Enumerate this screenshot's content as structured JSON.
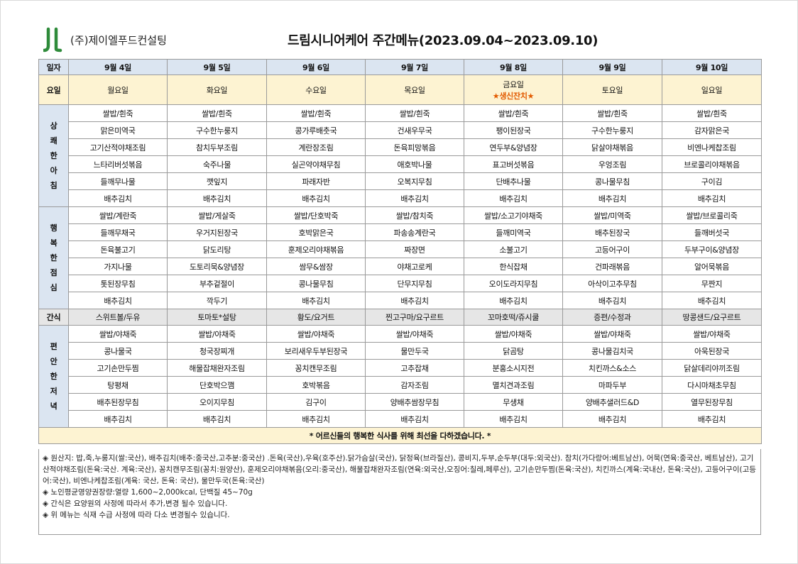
{
  "header": {
    "company": "(주)제이엘푸드컨설팅",
    "title": "드림시니어케어 주간메뉴(2023.09.04~2023.09.10)",
    "logo_icon": "jl-logo-icon",
    "logo_color": "#2e8b3a"
  },
  "table": {
    "row_label_date": "일자",
    "row_label_day": "요일",
    "row_label_snack": "간식",
    "dates": [
      "9월 4일",
      "9월 5일",
      "9월 6일",
      "9월 7일",
      "9월 8일",
      "9월 9일",
      "9월 10일"
    ],
    "days": [
      "월요일",
      "화요일",
      "수요일",
      "목요일",
      "금요일",
      "토요일",
      "일요일"
    ],
    "event": "★생신잔치★",
    "meals": [
      {
        "label": [
          "상",
          "쾌",
          "한",
          "아",
          "침"
        ],
        "rows": [
          [
            "쌀밥/흰죽",
            "쌀밥/흰죽",
            "쌀밥/흰죽",
            "쌀밥/흰죽",
            "쌀밥/흰죽",
            "쌀밥/흰죽",
            "쌀밥/흰죽"
          ],
          [
            "맑은미역국",
            "구수한누룽지",
            "콩가루배춧국",
            "건새우무국",
            "팽이된장국",
            "구수한누룽지",
            "감자맑은국"
          ],
          [
            "고기산적야채조림",
            "참치두부조림",
            "계란장조림",
            "돈육피망볶음",
            "연두부&양념장",
            "닭살야채볶음",
            "비엔나케찹조림"
          ],
          [
            "느타리버섯볶음",
            "숙주나물",
            "실곤약야채무침",
            "애호박나물",
            "표고버섯볶음",
            "우엉조림",
            "브로콜리야채볶음"
          ],
          [
            "들깨무나물",
            "깻잎지",
            "파래자반",
            "오복지무침",
            "단배추나물",
            "콩나물무침",
            "구이김"
          ],
          [
            "배추김치",
            "배추김치",
            "배추김치",
            "배추김치",
            "배추김치",
            "배추김치",
            "배추김치"
          ]
        ]
      },
      {
        "label": [
          "행",
          "복",
          "한",
          "점",
          "심"
        ],
        "rows": [
          [
            "쌀밥/계란죽",
            "쌀밥/게살죽",
            "쌀밥/단호박죽",
            "쌀밥/참치죽",
            "쌀밥/소고기야채죽",
            "쌀밥/미역죽",
            "쌀밥/브로콜리죽"
          ],
          [
            "들깨무채국",
            "우거지된장국",
            "호박맑은국",
            "파송송계란국",
            "들깨미역국",
            "배추된장국",
            "들깨버섯국"
          ],
          [
            "돈육불고기",
            "닭도리탕",
            "훈제오리야채볶음",
            "짜장면",
            "소불고기",
            "고등어구이",
            "두부구이&양념장"
          ],
          [
            "가지나물",
            "도토리묵&양념장",
            "쌈무&쌈장",
            "야채고로케",
            "한식잡채",
            "건파래볶음",
            "알어묵볶음"
          ],
          [
            "톳된장무침",
            "부추겉절이",
            "콩나물무침",
            "단무지무침",
            "오이도라지무침",
            "아삭이고추무침",
            "무짠지"
          ],
          [
            "배추김치",
            "깍두기",
            "배추김치",
            "배추김치",
            "배추김치",
            "배추김치",
            "배추김치"
          ]
        ]
      },
      {
        "label": [
          "편",
          "안",
          "한",
          "저",
          "녁"
        ],
        "rows": [
          [
            "쌀밥/야채죽",
            "쌀밥/야채죽",
            "쌀밥/야채죽",
            "쌀밥/야채죽",
            "쌀밥/야채죽",
            "쌀밥/야채죽",
            "쌀밥/야채죽"
          ],
          [
            "콩나물국",
            "청국장찌개",
            "보리새우두부된장국",
            "물만두국",
            "닭곰탕",
            "콩나물김치국",
            "아욱된장국"
          ],
          [
            "고기손만두찜",
            "해물잡채완자조림",
            "꽁치캔무조림",
            "고추잡채",
            "분홍소시지전",
            "치킨까스&소스",
            "닭살데리야끼조림"
          ],
          [
            "탕평채",
            "단호박으깸",
            "호박볶음",
            "감자조림",
            "멸치견과조림",
            "마파두부",
            "다시마채초무침"
          ],
          [
            "배추된장무침",
            "오이지무침",
            "김구이",
            "양배추쌈장무침",
            "무생채",
            "양배추샐러드&D",
            "열무된장무침"
          ],
          [
            "배추김치",
            "배추김치",
            "배추김치",
            "배추김치",
            "배추김치",
            "배추김치",
            "배추김치"
          ]
        ]
      }
    ],
    "snacks": [
      "스위트볼/두유",
      "토마토*설탕",
      "황도/요거트",
      "찐고구마/요구르트",
      "꼬마호떡/쥬시쿨",
      "증편/수정과",
      "땅콩샌드/요구르트"
    ],
    "footer_note": "* 어르신들의 행복한 식사를 위해 최선을 다하겠습니다. *"
  },
  "info": {
    "lines": [
      "◈ 원산지: 밥,죽,누룽지(쌀:국산), 배추김치(배추:중국산,고추분:중국산) .돈육(국산),우육(호주산).닭가슴살(국산), 닭정육(브라질산), 콩비지,두부,순두부(대두:외국산). 참치(가다랑어:베트남산), 어묵(연육:중국산, 베트남산), 고기산적야채조림(돈육:국산. 계육:국산), 꽁치캔무조림(꽁치:원양산), 훈제오리야채볶음(오리:중국산), 해물잡채완자조림(연육:외국산,오징어:칠레,페루산), 고기손만두찜(돈육:국산), 치킨까스(계육:국내산, 돈육:국산), 고등어구이(고등어:국산), 비엔나케찹조림(계육: 국산, 돈육: 국산), 물만두국(돈육:국산)",
      "◈ 노인평균영양권장량:열량 1,600~2,000kcal, 단백질 45~70g",
      "◈ 간식은 요양원의 사정에 따라서 추가,변경 될수 있습니다.",
      "◈ 위 메뉴는 식재 수급 사정에 따라 다소 변경될수 있습니다."
    ]
  }
}
